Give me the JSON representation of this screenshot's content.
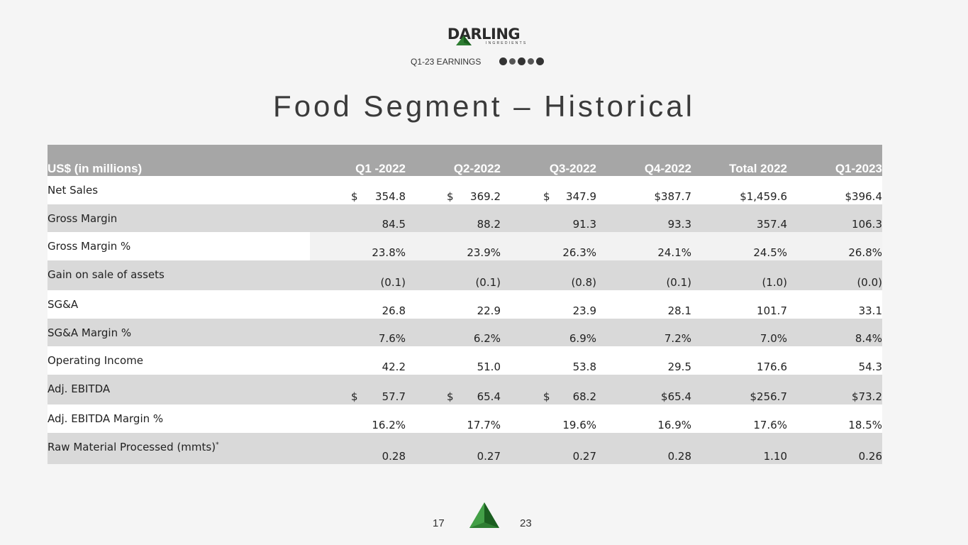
{
  "header": {
    "logo_word": "DARLING",
    "logo_sub": "INGREDIENTS",
    "earnings_label": "Q1-23 EARNINGS"
  },
  "title": "Food Segment – Historical",
  "table": {
    "headers": [
      "US$ (in millions)",
      "Q1 -2022",
      "Q2-2022",
      "Q3-2022",
      "Q4-2022",
      "Total 2022",
      "Q1-2023"
    ],
    "rows": [
      {
        "label": "Net Sales",
        "cells": [
          [
            "$",
            "354.8"
          ],
          [
            "$",
            "369.2"
          ],
          [
            "$",
            "347.9"
          ],
          [
            "",
            "$387.7"
          ],
          [
            "",
            "$1,459.6"
          ],
          [
            "",
            "$396.4"
          ]
        ]
      },
      {
        "label": "Gross Margin",
        "cells": [
          [
            "",
            "84.5"
          ],
          [
            "",
            "88.2"
          ],
          [
            "",
            "91.3"
          ],
          [
            "",
            "93.3"
          ],
          [
            "",
            "357.4"
          ],
          [
            "",
            "106.3"
          ]
        ]
      },
      {
        "label": "Gross Margin %",
        "cells": [
          [
            "",
            "23.8%"
          ],
          [
            "",
            "23.9%"
          ],
          [
            "",
            "26.3%"
          ],
          [
            "",
            "24.1%"
          ],
          [
            "",
            "24.5%"
          ],
          [
            "",
            "26.8%"
          ]
        ]
      },
      {
        "label": "Gain on sale of assets",
        "cells": [
          [
            "",
            "(0.1)"
          ],
          [
            "",
            "(0.1)"
          ],
          [
            "",
            "(0.8)"
          ],
          [
            "",
            "(0.1)"
          ],
          [
            "",
            "(1.0)"
          ],
          [
            "",
            "(0.0)"
          ]
        ]
      },
      {
        "label": "SG&A",
        "cells": [
          [
            "",
            "26.8"
          ],
          [
            "",
            "22.9"
          ],
          [
            "",
            "23.9"
          ],
          [
            "",
            "28.1"
          ],
          [
            "",
            "101.7"
          ],
          [
            "",
            "33.1"
          ]
        ]
      },
      {
        "label": "SG&A Margin %",
        "cells": [
          [
            "",
            "7.6%"
          ],
          [
            "",
            "6.2%"
          ],
          [
            "",
            "6.9%"
          ],
          [
            "",
            "7.2%"
          ],
          [
            "",
            "7.0%"
          ],
          [
            "",
            "8.4%"
          ]
        ]
      },
      {
        "label": "Operating Income",
        "cells": [
          [
            "",
            "42.2"
          ],
          [
            "",
            "51.0"
          ],
          [
            "",
            "53.8"
          ],
          [
            "",
            "29.5"
          ],
          [
            "",
            "176.6"
          ],
          [
            "",
            "54.3"
          ]
        ]
      },
      {
        "label": "Adj. EBITDA",
        "cells": [
          [
            "$",
            "57.7"
          ],
          [
            "$",
            "65.4"
          ],
          [
            "$",
            "68.2"
          ],
          [
            "",
            "$65.4"
          ],
          [
            "",
            "$256.7"
          ],
          [
            "",
            "$73.2"
          ]
        ]
      },
      {
        "label": "Adj. EBITDA Margin %",
        "cells": [
          [
            "",
            "16.2%"
          ],
          [
            "",
            "17.7%"
          ],
          [
            "",
            "19.6%"
          ],
          [
            "",
            "16.9%"
          ],
          [
            "",
            "17.6%"
          ],
          [
            "",
            "18.5%"
          ]
        ]
      },
      {
        "label": "Raw Material Processed (mmts)",
        "sup": "*",
        "cells": [
          [
            "",
            "0.28"
          ],
          [
            "",
            "0.27"
          ],
          [
            "",
            "0.27"
          ],
          [
            "",
            "0.28"
          ],
          [
            "",
            "1.10"
          ],
          [
            "",
            "0.26"
          ]
        ]
      }
    ]
  },
  "footer": {
    "page_left": "17",
    "page_right": "23"
  },
  "colors": {
    "header_bg": "#a6a6a6",
    "band": "#d9d9d9",
    "brand_green": "#2e7d32"
  }
}
